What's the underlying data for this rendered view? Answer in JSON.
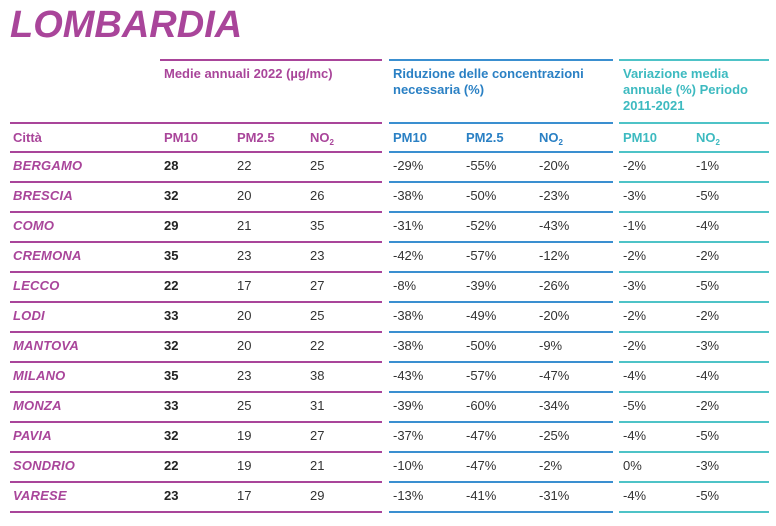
{
  "title": "LOMBARDIA",
  "groups": {
    "annual": "Medie annuali 2022 (µg/mc)",
    "reduction": "Riduzione delle concentrazioni necessaria (%)",
    "variation": "Variazione media annuale (%) Periodo 2011-2021"
  },
  "columns": {
    "city": "Città",
    "pm10": "PM10",
    "pm25": "PM2.5",
    "no2_base": "NO",
    "no2_sub": "2"
  },
  "rows": [
    {
      "city": "BERGAMO",
      "pm10": "28",
      "pm25": "22",
      "no2": "25",
      "red_pm10": "-29%",
      "red_pm25": "-55%",
      "red_no2": "-20%",
      "var_pm10": "-2%",
      "var_no2": "-1%"
    },
    {
      "city": "BRESCIA",
      "pm10": "32",
      "pm25": "20",
      "no2": "26",
      "red_pm10": "-38%",
      "red_pm25": "-50%",
      "red_no2": "-23%",
      "var_pm10": "-3%",
      "var_no2": "-5%"
    },
    {
      "city": "COMO",
      "pm10": "29",
      "pm25": "21",
      "no2": "35",
      "red_pm10": "-31%",
      "red_pm25": "-52%",
      "red_no2": "-43%",
      "var_pm10": "-1%",
      "var_no2": "-4%"
    },
    {
      "city": "CREMONA",
      "pm10": "35",
      "pm25": "23",
      "no2": "23",
      "red_pm10": "-42%",
      "red_pm25": "-57%",
      "red_no2": "-12%",
      "var_pm10": "-2%",
      "var_no2": "-2%"
    },
    {
      "city": "LECCO",
      "pm10": "22",
      "pm25": "17",
      "no2": "27",
      "red_pm10": "-8%",
      "red_pm25": "-39%",
      "red_no2": "-26%",
      "var_pm10": "-3%",
      "var_no2": "-5%"
    },
    {
      "city": "LODI",
      "pm10": "33",
      "pm25": "20",
      "no2": "25",
      "red_pm10": "-38%",
      "red_pm25": "-49%",
      "red_no2": "-20%",
      "var_pm10": "-2%",
      "var_no2": "-2%"
    },
    {
      "city": "MANTOVA",
      "pm10": "32",
      "pm25": "20",
      "no2": "22",
      "red_pm10": "-38%",
      "red_pm25": "-50%",
      "red_no2": "-9%",
      "var_pm10": "-2%",
      "var_no2": "-3%"
    },
    {
      "city": "MILANO",
      "pm10": "35",
      "pm25": "23",
      "no2": "38",
      "red_pm10": "-43%",
      "red_pm25": "-57%",
      "red_no2": "-47%",
      "var_pm10": "-4%",
      "var_no2": "-4%"
    },
    {
      "city": "MONZA",
      "pm10": "33",
      "pm25": "25",
      "no2": "31",
      "red_pm10": "-39%",
      "red_pm25": "-60%",
      "red_no2": "-34%",
      "var_pm10": "-5%",
      "var_no2": "-2%"
    },
    {
      "city": "PAVIA",
      "pm10": "32",
      "pm25": "19",
      "no2": "27",
      "red_pm10": "-37%",
      "red_pm25": "-47%",
      "red_no2": "-25%",
      "var_pm10": "-4%",
      "var_no2": "-5%"
    },
    {
      "city": "SONDRIO",
      "pm10": "22",
      "pm25": "19",
      "no2": "21",
      "red_pm10": "-10%",
      "red_pm25": "-47%",
      "red_no2": "-2%",
      "var_pm10": "0%",
      "var_no2": "-3%"
    },
    {
      "city": "VARESE",
      "pm10": "23",
      "pm25": "17",
      "no2": "29",
      "red_pm10": "-13%",
      "red_pm25": "-41%",
      "red_no2": "-31%",
      "var_pm10": "-4%",
      "var_no2": "-5%"
    }
  ],
  "colors": {
    "magenta": "#a9459a",
    "blue": "#2a80c4",
    "teal": "#3dbac0"
  }
}
